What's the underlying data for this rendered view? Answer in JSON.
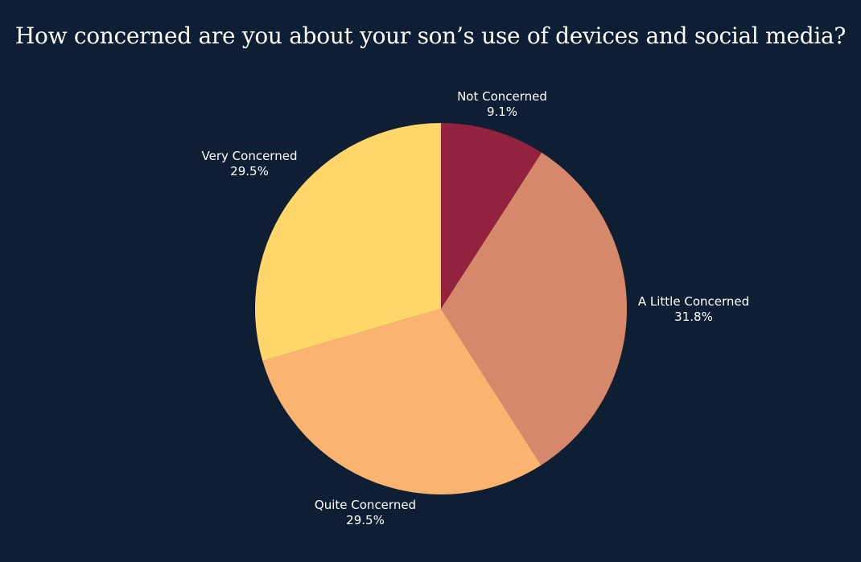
{
  "chart_data": {
    "type": "pie",
    "title": "How concerned are you about your son’s use of devices and social media?",
    "slices": [
      {
        "label": "Not Concerned",
        "value": 9.1,
        "display": "9.1%",
        "color": "#92223d"
      },
      {
        "label": "A Little Concerned",
        "value": 31.8,
        "display": "31.8%",
        "color": "#d6886a"
      },
      {
        "label": "Quite Concerned",
        "value": 29.5,
        "display": "29.5%",
        "color": "#fbb46f"
      },
      {
        "label": "Very Concerned",
        "value": 29.5,
        "display": "29.5%",
        "color": "#fed669"
      }
    ],
    "start": "12 o'clock",
    "direction": "clockwise",
    "legend": "none"
  },
  "colors": {
    "background": "#0e1e33",
    "text": "#ffffff"
  }
}
